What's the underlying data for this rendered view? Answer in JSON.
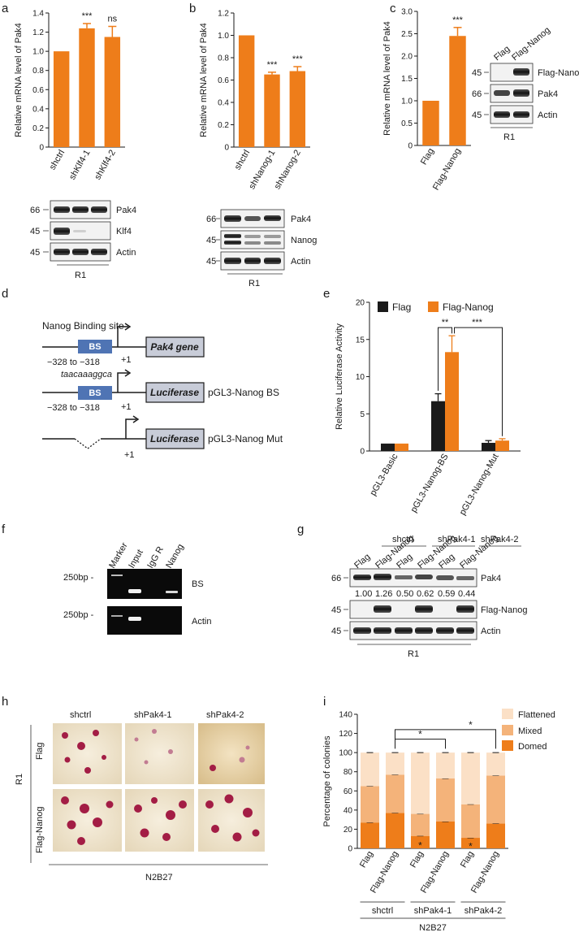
{
  "colors": {
    "orange": "#ee7d1a",
    "black": "#1a1a1a",
    "flattened": "#fbe0c6",
    "mixed": "#f4b37a",
    "domed": "#ee7d1a",
    "bs_box": "#4f74b4",
    "gene_box": "#c8ccd8"
  },
  "panels": {
    "a": {
      "label": "a"
    },
    "b": {
      "label": "b"
    },
    "c": {
      "label": "c"
    },
    "d": {
      "label": "d"
    },
    "e": {
      "label": "e"
    },
    "f": {
      "label": "f"
    },
    "g": {
      "label": "g"
    },
    "h": {
      "label": "h"
    },
    "i": {
      "label": "i"
    }
  },
  "chart_data": [
    {
      "panel": "a",
      "type": "bar",
      "ylabel": "Relative mRNA level of Pak4",
      "categories": [
        "shctrl",
        "shKlf4-1",
        "shKlf4-2"
      ],
      "values": [
        1.0,
        1.24,
        1.15
      ],
      "errors": [
        0,
        0.05,
        0.11
      ],
      "significance": [
        "",
        "***",
        "ns"
      ],
      "ylim": [
        0,
        1.4
      ],
      "yticks": [
        "0",
        "0.2",
        "0.4",
        "0.6",
        "0.8",
        "1.0",
        "1.2",
        "1.4"
      ]
    },
    {
      "panel": "b",
      "type": "bar",
      "ylabel": "Relative mRNA level of Pak4",
      "categories": [
        "shctrl",
        "shNanog-1",
        "shNanog-2"
      ],
      "values": [
        1.0,
        0.65,
        0.68
      ],
      "errors": [
        0,
        0.02,
        0.04
      ],
      "significance": [
        "",
        "***",
        "***"
      ],
      "ylim": [
        0,
        1.2
      ],
      "yticks": [
        "0",
        "0.2",
        "0.4",
        "0.6",
        "0.8",
        "1.0",
        "1.2"
      ]
    },
    {
      "panel": "c",
      "type": "bar",
      "ylabel": "Relative mRNA level of Pak4",
      "categories": [
        "Flag",
        "Flag-Nanog"
      ],
      "values": [
        1.0,
        2.45
      ],
      "errors": [
        0,
        0.19
      ],
      "significance": [
        "",
        "***"
      ],
      "ylim": [
        0,
        3.0
      ],
      "yticks": [
        "0",
        "0.5",
        "1.0",
        "1.5",
        "2.0",
        "2.5",
        "3.0"
      ]
    },
    {
      "panel": "e",
      "type": "bar",
      "ylabel": "Relative Luciferase Activity",
      "categories": [
        "pGL3-Basic",
        "pGL3-Nanog-BS",
        "pGL3-Nanog-Mut"
      ],
      "series": [
        {
          "name": "Flag",
          "values": [
            1.0,
            6.7,
            1.1
          ],
          "errors": [
            0,
            1.0,
            0.3
          ]
        },
        {
          "name": "Flag-Nanog",
          "values": [
            1.0,
            13.3,
            1.4
          ],
          "errors": [
            0,
            2.2,
            0.25
          ]
        }
      ],
      "ylim": [
        0,
        20
      ],
      "yticks": [
        "0",
        "5",
        "10",
        "15",
        "20"
      ],
      "brackets": [
        "**",
        "***"
      ]
    },
    {
      "panel": "i",
      "type": "bar",
      "stacked": true,
      "ylabel": "Percentage of colonies",
      "categories": [
        "Flag",
        "Flag-Nanog",
        "Flag",
        "Flag-Nanog",
        "Flag",
        "Flag-Nanog"
      ],
      "series": [
        {
          "name": "Domed",
          "values": [
            27,
            37,
            13,
            28,
            11,
            26
          ]
        },
        {
          "name": "Mixed",
          "values": [
            38,
            40,
            23,
            45,
            35,
            50
          ]
        },
        {
          "name": "Flattened",
          "values": [
            35,
            23,
            64,
            27,
            54,
            24
          ]
        }
      ],
      "ylim": [
        0,
        140
      ],
      "yticks": [
        "0",
        "20",
        "40",
        "60",
        "80",
        "100",
        "120",
        "140"
      ],
      "stars": [
        "*",
        "*"
      ],
      "groups": [
        "shctrl",
        "shPak4-1",
        "shPak4-2"
      ],
      "medium": "N2B27"
    }
  ],
  "blot_a": {
    "rows": [
      {
        "mw": "66",
        "label": "Pak4"
      },
      {
        "mw": "45",
        "label": "Klf4"
      },
      {
        "mw": "45",
        "label": "Actin"
      }
    ],
    "cell": "R1"
  },
  "blot_b": {
    "rows": [
      {
        "mw": "66",
        "label": "Pak4"
      },
      {
        "mw": "45",
        "label": "Nanog"
      },
      {
        "mw": "45",
        "label": "Actin"
      }
    ],
    "cell": "R1"
  },
  "blot_c": {
    "lanes": [
      "Flag",
      "Flag-Nanog"
    ],
    "rows": [
      {
        "mw": "45",
        "label": "Flag-Nanog"
      },
      {
        "mw": "66",
        "label": "Pak4"
      },
      {
        "mw": "45",
        "label": "Actin"
      }
    ],
    "cell": "R1"
  },
  "diagram_d": {
    "binding_site_title": "Nanog Binding site",
    "bs": "BS",
    "range": "−328 to −318",
    "sequence": "taacaaaggca",
    "plus_one": "+1",
    "gene": "Pak4 gene",
    "luciferase": "Luciferase",
    "construct1": "pGL3-Nanog BS",
    "construct2": "pGL3-Nanog Mut"
  },
  "gel_f": {
    "lanes": [
      "Marker",
      "Input",
      "IgG R",
      "Nanog"
    ],
    "marker": "250bp -",
    "rows": [
      "BS",
      "Actin"
    ]
  },
  "blot_g": {
    "groups": [
      "shctrl",
      "shPak4-1",
      "shPak4-2"
    ],
    "lanes": [
      "Flag",
      "Flag-Nanog",
      "Flag",
      "Flag-Nanog",
      "Flag",
      "Flag-Nanog"
    ],
    "quant": [
      "1.00",
      "1.26",
      "0.50",
      "0.62",
      "0.59",
      "0.44"
    ],
    "rows": [
      {
        "mw": "66",
        "label": "Pak4"
      },
      {
        "mw": "45",
        "label": "Flag-Nanog"
      },
      {
        "mw": "45",
        "label": "Actin"
      }
    ],
    "cell": "R1"
  },
  "images_h": {
    "cols": [
      "shctrl",
      "shPak4-1",
      "shPak4-2"
    ],
    "rows": [
      "Flag",
      "Flag-Nanog"
    ],
    "cell": "R1",
    "medium": "N2B27"
  },
  "legend_i": [
    "Flattened",
    "Mixed",
    "Domed"
  ]
}
